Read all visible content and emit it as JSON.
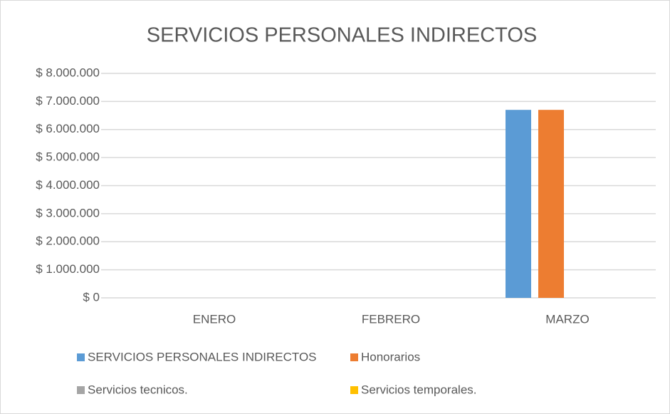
{
  "chart_data": {
    "type": "bar",
    "title": "SERVICIOS PERSONALES INDIRECTOS",
    "categories": [
      "ENERO",
      "FEBRERO",
      "MARZO"
    ],
    "series": [
      {
        "name": "SERVICIOS PERSONALES INDIRECTOS",
        "color": "#5b9bd5",
        "values": [
          0,
          0,
          6700000
        ]
      },
      {
        "name": "Honorarios",
        "color": "#ed7d31",
        "values": [
          0,
          0,
          6700000
        ]
      },
      {
        "name": "Servicios tecnicos.",
        "color": "#a5a5a5",
        "values": [
          0,
          0,
          0
        ]
      },
      {
        "name": "Servicios temporales.",
        "color": "#ffc000",
        "values": [
          0,
          0,
          0
        ]
      }
    ],
    "ylim": [
      0,
      8000000
    ],
    "yticks": [
      {
        "value": 0,
        "label": "$ 0"
      },
      {
        "value": 1000000,
        "label": "$ 1.000.000"
      },
      {
        "value": 2000000,
        "label": "$ 2.000.000"
      },
      {
        "value": 3000000,
        "label": "$ 3.000.000"
      },
      {
        "value": 4000000,
        "label": "$ 4.000.000"
      },
      {
        "value": 5000000,
        "label": "$ 5.000.000"
      },
      {
        "value": 6000000,
        "label": "$ 6.000.000"
      },
      {
        "value": 7000000,
        "label": "$ 7.000.000"
      },
      {
        "value": 8000000,
        "label": "$ 8.000.000"
      }
    ],
    "grid": true,
    "legend": "bottom"
  }
}
